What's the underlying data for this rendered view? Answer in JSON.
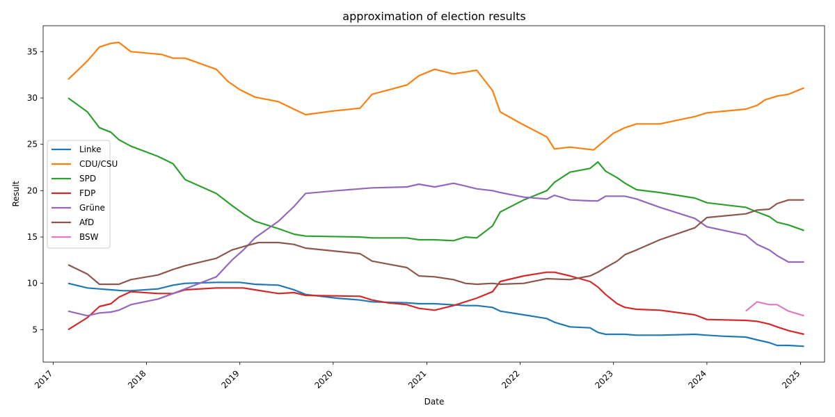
{
  "chart_data": {
    "type": "line",
    "title": "approximation of election results",
    "xlabel": "Date",
    "ylabel": "Result",
    "xlim": [
      "2016-11-23",
      "2025-04-05"
    ],
    "ylim": [
      1.5,
      37.8
    ],
    "x_ticks": [
      "2017",
      "2018",
      "2019",
      "2020",
      "2021",
      "2022",
      "2023",
      "2024",
      "2025"
    ],
    "y_ticks": [
      5,
      10,
      15,
      20,
      25,
      30,
      35
    ],
    "grid": false,
    "legend_position": "center-left",
    "series": [
      {
        "name": "Linke",
        "color": "#1f77b4",
        "points": [
          [
            "2017-03-01",
            10.0
          ],
          [
            "2017-05-15",
            9.5
          ],
          [
            "2017-07-01",
            9.4
          ],
          [
            "2017-08-15",
            9.3
          ],
          [
            "2017-10-01",
            9.2
          ],
          [
            "2017-11-01",
            9.2
          ],
          [
            "2018-02-15",
            9.4
          ],
          [
            "2018-04-15",
            9.8
          ],
          [
            "2018-06-01",
            10.0
          ],
          [
            "2018-10-01",
            10.1
          ],
          [
            "2019-01-01",
            10.1
          ],
          [
            "2019-03-01",
            9.9
          ],
          [
            "2019-06-01",
            9.8
          ],
          [
            "2019-08-01",
            9.3
          ],
          [
            "2019-09-15",
            8.8
          ],
          [
            "2020-01-15",
            8.4
          ],
          [
            "2020-04-15",
            8.2
          ],
          [
            "2020-06-01",
            8.0
          ],
          [
            "2020-10-15",
            7.9
          ],
          [
            "2020-12-01",
            7.8
          ],
          [
            "2021-02-01",
            7.8
          ],
          [
            "2021-04-01",
            7.7
          ],
          [
            "2021-06-01",
            7.6
          ],
          [
            "2021-07-15",
            7.6
          ],
          [
            "2021-09-15",
            7.4
          ],
          [
            "2021-10-15",
            7.0
          ],
          [
            "2022-01-15",
            6.6
          ],
          [
            "2022-04-15",
            6.2
          ],
          [
            "2022-05-15",
            5.8
          ],
          [
            "2022-07-15",
            5.3
          ],
          [
            "2022-10-01",
            5.2
          ],
          [
            "2022-11-01",
            4.7
          ],
          [
            "2022-12-01",
            4.5
          ],
          [
            "2023-02-15",
            4.5
          ],
          [
            "2023-04-01",
            4.4
          ],
          [
            "2023-07-01",
            4.4
          ],
          [
            "2023-11-15",
            4.5
          ],
          [
            "2024-01-01",
            4.4
          ],
          [
            "2024-03-01",
            4.3
          ],
          [
            "2024-06-01",
            4.2
          ],
          [
            "2024-07-15",
            3.9
          ],
          [
            "2024-09-01",
            3.6
          ],
          [
            "2024-10-01",
            3.3
          ],
          [
            "2024-11-15",
            3.3
          ],
          [
            "2025-01-15",
            3.2
          ]
        ]
      },
      {
        "name": "CDU/CSU",
        "color": "#ff7f0e",
        "points": [
          [
            "2017-03-01",
            32.0
          ],
          [
            "2017-05-15",
            34.0
          ],
          [
            "2017-07-01",
            35.5
          ],
          [
            "2017-08-15",
            35.9
          ],
          [
            "2017-09-15",
            36.0
          ],
          [
            "2017-11-01",
            35.0
          ],
          [
            "2018-03-01",
            34.7
          ],
          [
            "2018-04-15",
            34.3
          ],
          [
            "2018-06-01",
            34.3
          ],
          [
            "2018-10-01",
            33.1
          ],
          [
            "2018-11-15",
            31.8
          ],
          [
            "2019-01-01",
            30.9
          ],
          [
            "2019-03-01",
            30.1
          ],
          [
            "2019-06-01",
            29.6
          ],
          [
            "2019-09-15",
            28.2
          ],
          [
            "2020-01-01",
            28.6
          ],
          [
            "2020-04-15",
            28.9
          ],
          [
            "2020-06-01",
            30.4
          ],
          [
            "2020-10-15",
            31.4
          ],
          [
            "2020-12-01",
            32.4
          ],
          [
            "2021-02-01",
            33.1
          ],
          [
            "2021-04-15",
            32.6
          ],
          [
            "2021-06-01",
            32.8
          ],
          [
            "2021-07-15",
            33.0
          ],
          [
            "2021-09-15",
            30.8
          ],
          [
            "2021-10-15",
            28.5
          ],
          [
            "2022-01-01",
            27.3
          ],
          [
            "2022-04-15",
            25.8
          ],
          [
            "2022-05-15",
            24.5
          ],
          [
            "2022-07-15",
            24.7
          ],
          [
            "2022-10-15",
            24.4
          ],
          [
            "2023-01-01",
            26.2
          ],
          [
            "2023-02-15",
            26.8
          ],
          [
            "2023-04-01",
            27.2
          ],
          [
            "2023-07-01",
            27.2
          ],
          [
            "2023-11-15",
            28.0
          ],
          [
            "2024-01-01",
            28.4
          ],
          [
            "2024-06-01",
            28.8
          ],
          [
            "2024-07-15",
            29.2
          ],
          [
            "2024-08-15",
            29.8
          ],
          [
            "2024-10-01",
            30.2
          ],
          [
            "2024-11-15",
            30.4
          ],
          [
            "2025-01-15",
            31.1
          ]
        ]
      },
      {
        "name": "SPD",
        "color": "#2ca02c",
        "points": [
          [
            "2017-03-01",
            30.0
          ],
          [
            "2017-05-15",
            28.5
          ],
          [
            "2017-07-01",
            26.8
          ],
          [
            "2017-08-15",
            26.3
          ],
          [
            "2017-09-15",
            25.5
          ],
          [
            "2017-11-01",
            24.8
          ],
          [
            "2018-02-15",
            23.7
          ],
          [
            "2018-04-15",
            22.9
          ],
          [
            "2018-06-01",
            21.2
          ],
          [
            "2018-10-01",
            19.7
          ],
          [
            "2018-12-01",
            18.4
          ],
          [
            "2019-01-15",
            17.5
          ],
          [
            "2019-03-01",
            16.7
          ],
          [
            "2019-06-01",
            15.9
          ],
          [
            "2019-08-01",
            15.3
          ],
          [
            "2019-09-15",
            15.1
          ],
          [
            "2020-04-15",
            15.0
          ],
          [
            "2020-06-01",
            14.9
          ],
          [
            "2020-10-15",
            14.9
          ],
          [
            "2020-12-01",
            14.7
          ],
          [
            "2021-02-01",
            14.7
          ],
          [
            "2021-04-15",
            14.6
          ],
          [
            "2021-06-01",
            15.0
          ],
          [
            "2021-07-15",
            14.9
          ],
          [
            "2021-09-15",
            16.2
          ],
          [
            "2021-10-15",
            17.7
          ],
          [
            "2022-01-15",
            19.0
          ],
          [
            "2022-04-15",
            20.0
          ],
          [
            "2022-05-15",
            20.9
          ],
          [
            "2022-07-15",
            22.0
          ],
          [
            "2022-10-01",
            22.4
          ],
          [
            "2022-11-01",
            23.1
          ],
          [
            "2022-12-01",
            22.1
          ],
          [
            "2023-01-15",
            21.4
          ],
          [
            "2023-02-15",
            20.8
          ],
          [
            "2023-04-01",
            20.1
          ],
          [
            "2023-07-01",
            19.8
          ],
          [
            "2023-11-15",
            19.2
          ],
          [
            "2024-01-01",
            18.7
          ],
          [
            "2024-04-01",
            18.4
          ],
          [
            "2024-06-01",
            18.2
          ],
          [
            "2024-07-15",
            17.7
          ],
          [
            "2024-09-01",
            17.2
          ],
          [
            "2024-10-01",
            16.6
          ],
          [
            "2024-11-15",
            16.3
          ],
          [
            "2025-01-15",
            15.7
          ]
        ]
      },
      {
        "name": "FDP",
        "color": "#d62728",
        "points": [
          [
            "2017-03-01",
            5.0
          ],
          [
            "2017-05-15",
            6.3
          ],
          [
            "2017-07-01",
            7.5
          ],
          [
            "2017-08-15",
            7.8
          ],
          [
            "2017-09-15",
            8.5
          ],
          [
            "2017-11-01",
            9.1
          ],
          [
            "2018-02-15",
            8.9
          ],
          [
            "2018-04-15",
            8.9
          ],
          [
            "2018-06-01",
            9.3
          ],
          [
            "2018-10-01",
            9.5
          ],
          [
            "2018-12-01",
            9.5
          ],
          [
            "2019-01-15",
            9.5
          ],
          [
            "2019-03-01",
            9.3
          ],
          [
            "2019-06-01",
            8.9
          ],
          [
            "2019-08-01",
            9.0
          ],
          [
            "2019-09-15",
            8.7
          ],
          [
            "2020-04-15",
            8.6
          ],
          [
            "2020-06-01",
            8.2
          ],
          [
            "2020-08-01",
            7.9
          ],
          [
            "2020-10-15",
            7.7
          ],
          [
            "2020-12-01",
            7.3
          ],
          [
            "2021-02-01",
            7.1
          ],
          [
            "2021-04-15",
            7.6
          ],
          [
            "2021-07-15",
            8.4
          ],
          [
            "2021-09-15",
            9.1
          ],
          [
            "2021-10-15",
            10.2
          ],
          [
            "2022-01-15",
            10.8
          ],
          [
            "2022-04-15",
            11.2
          ],
          [
            "2022-05-15",
            11.2
          ],
          [
            "2022-07-15",
            10.8
          ],
          [
            "2022-10-01",
            10.2
          ],
          [
            "2022-11-01",
            9.6
          ],
          [
            "2022-12-01",
            8.8
          ],
          [
            "2023-01-15",
            7.8
          ],
          [
            "2023-02-15",
            7.4
          ],
          [
            "2023-04-01",
            7.2
          ],
          [
            "2023-07-01",
            7.1
          ],
          [
            "2023-11-15",
            6.6
          ],
          [
            "2024-01-01",
            6.1
          ],
          [
            "2024-06-01",
            6.0
          ],
          [
            "2024-07-15",
            5.9
          ],
          [
            "2024-09-01",
            5.6
          ],
          [
            "2024-10-01",
            5.3
          ],
          [
            "2024-11-15",
            4.9
          ],
          [
            "2025-01-15",
            4.5
          ]
        ]
      },
      {
        "name": "Grüne",
        "color": "#9467bd",
        "points": [
          [
            "2017-03-01",
            7.0
          ],
          [
            "2017-05-15",
            6.5
          ],
          [
            "2017-07-01",
            6.8
          ],
          [
            "2017-08-15",
            6.9
          ],
          [
            "2017-09-15",
            7.1
          ],
          [
            "2017-11-01",
            7.7
          ],
          [
            "2018-02-15",
            8.3
          ],
          [
            "2018-04-15",
            8.9
          ],
          [
            "2018-06-01",
            9.4
          ],
          [
            "2018-10-01",
            10.7
          ],
          [
            "2018-12-01",
            12.5
          ],
          [
            "2019-01-15",
            13.6
          ],
          [
            "2019-03-01",
            14.9
          ],
          [
            "2019-06-01",
            16.7
          ],
          [
            "2019-08-01",
            18.3
          ],
          [
            "2019-09-15",
            19.7
          ],
          [
            "2020-01-15",
            20.0
          ],
          [
            "2020-04-15",
            20.2
          ],
          [
            "2020-06-01",
            20.3
          ],
          [
            "2020-10-15",
            20.4
          ],
          [
            "2020-12-01",
            20.7
          ],
          [
            "2021-02-01",
            20.4
          ],
          [
            "2021-04-15",
            20.8
          ],
          [
            "2021-06-01",
            20.5
          ],
          [
            "2021-07-15",
            20.2
          ],
          [
            "2021-09-15",
            20.0
          ],
          [
            "2021-10-15",
            19.8
          ],
          [
            "2022-01-15",
            19.3
          ],
          [
            "2022-04-15",
            19.1
          ],
          [
            "2022-05-15",
            19.5
          ],
          [
            "2022-07-15",
            19.0
          ],
          [
            "2022-10-01",
            18.9
          ],
          [
            "2022-11-01",
            18.9
          ],
          [
            "2022-12-01",
            19.4
          ],
          [
            "2023-02-15",
            19.4
          ],
          [
            "2023-04-01",
            19.1
          ],
          [
            "2023-07-01",
            18.2
          ],
          [
            "2023-11-15",
            17.0
          ],
          [
            "2024-01-01",
            16.1
          ],
          [
            "2024-06-01",
            15.2
          ],
          [
            "2024-07-15",
            14.2
          ],
          [
            "2024-09-01",
            13.6
          ],
          [
            "2024-10-01",
            13.0
          ],
          [
            "2024-11-15",
            12.3
          ],
          [
            "2025-01-15",
            12.3
          ]
        ]
      },
      {
        "name": "AfD",
        "color": "#8c564b",
        "points": [
          [
            "2017-03-01",
            12.0
          ],
          [
            "2017-05-15",
            11.0
          ],
          [
            "2017-07-01",
            9.9
          ],
          [
            "2017-09-15",
            9.9
          ],
          [
            "2017-11-01",
            10.4
          ],
          [
            "2018-02-15",
            10.9
          ],
          [
            "2018-04-15",
            11.5
          ],
          [
            "2018-06-01",
            11.9
          ],
          [
            "2018-10-01",
            12.7
          ],
          [
            "2018-12-01",
            13.6
          ],
          [
            "2019-02-01",
            14.1
          ],
          [
            "2019-03-15",
            14.4
          ],
          [
            "2019-06-01",
            14.4
          ],
          [
            "2019-08-01",
            14.2
          ],
          [
            "2019-09-15",
            13.8
          ],
          [
            "2020-04-15",
            13.2
          ],
          [
            "2020-06-01",
            12.4
          ],
          [
            "2020-10-15",
            11.7
          ],
          [
            "2020-12-01",
            10.8
          ],
          [
            "2021-02-01",
            10.7
          ],
          [
            "2021-04-15",
            10.4
          ],
          [
            "2021-06-01",
            10.0
          ],
          [
            "2021-07-15",
            9.9
          ],
          [
            "2021-09-15",
            10.0
          ],
          [
            "2021-10-15",
            9.9
          ],
          [
            "2022-01-15",
            10.0
          ],
          [
            "2022-04-15",
            10.5
          ],
          [
            "2022-07-15",
            10.4
          ],
          [
            "2022-10-01",
            10.8
          ],
          [
            "2022-11-01",
            11.2
          ],
          [
            "2022-12-01",
            11.7
          ],
          [
            "2023-01-15",
            12.4
          ],
          [
            "2023-02-15",
            13.1
          ],
          [
            "2023-04-01",
            13.6
          ],
          [
            "2023-07-01",
            14.7
          ],
          [
            "2023-11-15",
            16.0
          ],
          [
            "2024-01-01",
            17.1
          ],
          [
            "2024-06-01",
            17.5
          ],
          [
            "2024-07-15",
            17.9
          ],
          [
            "2024-09-01",
            18.0
          ],
          [
            "2024-10-01",
            18.6
          ],
          [
            "2024-11-15",
            19.0
          ],
          [
            "2025-01-15",
            19.0
          ]
        ]
      },
      {
        "name": "BSW",
        "color": "#e377c2",
        "points": [
          [
            "2024-06-01",
            7.0
          ],
          [
            "2024-07-15",
            8.0
          ],
          [
            "2024-09-01",
            7.7
          ],
          [
            "2024-10-01",
            7.7
          ],
          [
            "2024-11-15",
            7.0
          ],
          [
            "2025-01-15",
            6.5
          ]
        ]
      }
    ]
  }
}
